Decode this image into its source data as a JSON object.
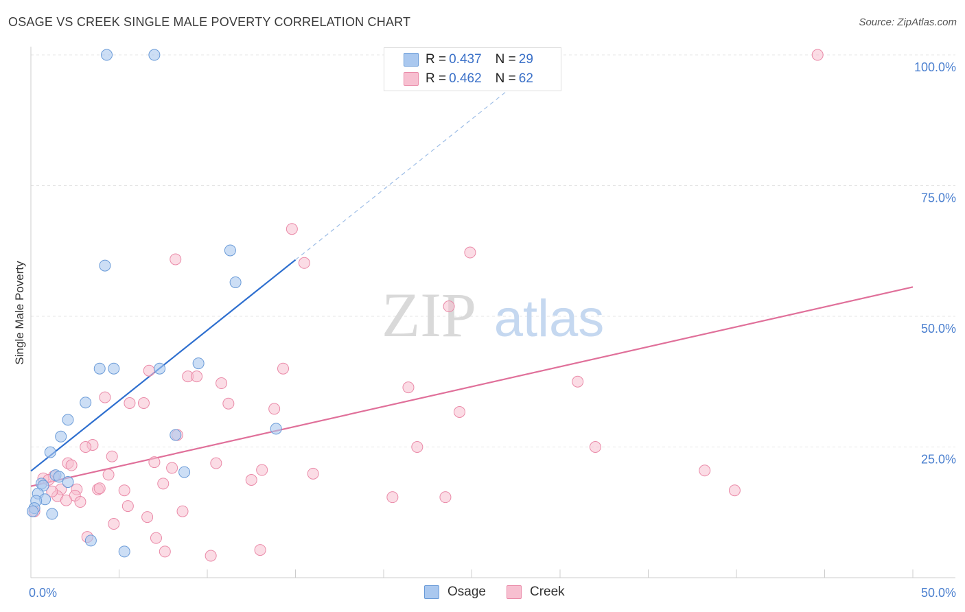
{
  "title": "OSAGE VS CREEK SINGLE MALE POVERTY CORRELATION CHART",
  "source": "Source: ZipAtlas.com",
  "watermark": {
    "zip": "ZIP",
    "atlas": "atlas"
  },
  "legend": {
    "rows": [
      {
        "r_label": "R = ",
        "r_value": "0.437",
        "n_label": "N = ",
        "n_value": "29"
      },
      {
        "r_label": "R = ",
        "r_value": "0.462",
        "n_label": "N = ",
        "n_value": "62"
      }
    ]
  },
  "bottom_legend": [
    "Osage",
    "Creek"
  ],
  "colors": {
    "osage_fill": "#aac8ef",
    "osage_stroke": "#6a9bd8",
    "osage_line": "#2e6fcf",
    "creek_fill": "#f7bfd0",
    "creek_stroke": "#ea8aa8",
    "creek_line": "#e0709a",
    "tick_text": "#4a7fcf",
    "grid": "#e4e4e4"
  },
  "chart_data": {
    "type": "scatter",
    "title": "OSAGE VS CREEK SINGLE MALE POVERTY CORRELATION CHART",
    "xlabel": "",
    "ylabel": "Single Male Poverty",
    "xlim": [
      0,
      50
    ],
    "ylim": [
      0,
      100
    ],
    "x_tick_labels": [
      "0.0%",
      "50.0%"
    ],
    "y_tick_labels": [
      "25.0%",
      "50.0%",
      "75.0%",
      "100.0%"
    ],
    "y_ticks": [
      25,
      50,
      75,
      100
    ],
    "series": [
      {
        "name": "Osage",
        "R": 0.437,
        "N": 29,
        "trend": {
          "x0": 0,
          "y0": 20.4,
          "x1": 15,
          "y1": 60.8,
          "dash_to_x": 27.5
        },
        "points": [
          [
            4.3,
            100
          ],
          [
            7.0,
            100
          ],
          [
            4.2,
            59.7
          ],
          [
            11.3,
            62.6
          ],
          [
            11.6,
            56.5
          ],
          [
            3.9,
            40.0
          ],
          [
            4.7,
            40.0
          ],
          [
            7.3,
            40.0
          ],
          [
            9.5,
            41.0
          ],
          [
            3.1,
            33.5
          ],
          [
            2.1,
            30.2
          ],
          [
            1.7,
            27.0
          ],
          [
            8.2,
            27.3
          ],
          [
            13.9,
            28.5
          ],
          [
            1.1,
            24.0
          ],
          [
            1.4,
            19.6
          ],
          [
            1.6,
            19.3
          ],
          [
            2.1,
            18.3
          ],
          [
            8.7,
            20.2
          ],
          [
            0.6,
            18.0
          ],
          [
            0.7,
            17.6
          ],
          [
            0.4,
            16.1
          ],
          [
            0.8,
            15.0
          ],
          [
            0.3,
            14.7
          ],
          [
            0.2,
            13.3
          ],
          [
            0.1,
            12.7
          ],
          [
            1.2,
            12.2
          ],
          [
            3.4,
            7.1
          ],
          [
            5.3,
            5.0
          ]
        ]
      },
      {
        "name": "Creek",
        "R": 0.462,
        "N": 62,
        "trend": {
          "x0": 0,
          "y0": 17.5,
          "x1": 50,
          "y1": 55.6
        },
        "points": [
          [
            44.6,
            100
          ],
          [
            14.8,
            66.7
          ],
          [
            15.5,
            60.2
          ],
          [
            8.2,
            60.9
          ],
          [
            24.9,
            62.2
          ],
          [
            23.7,
            51.9
          ],
          [
            14.3,
            40.0
          ],
          [
            6.7,
            39.6
          ],
          [
            8.9,
            38.5
          ],
          [
            9.4,
            38.5
          ],
          [
            10.8,
            37.2
          ],
          [
            31.0,
            37.5
          ],
          [
            21.4,
            36.4
          ],
          [
            4.2,
            34.5
          ],
          [
            5.6,
            33.4
          ],
          [
            6.4,
            33.4
          ],
          [
            11.2,
            33.3
          ],
          [
            13.8,
            32.3
          ],
          [
            24.3,
            31.7
          ],
          [
            8.3,
            27.3
          ],
          [
            3.5,
            25.4
          ],
          [
            3.1,
            25.0
          ],
          [
            21.9,
            25.0
          ],
          [
            32.0,
            25.0
          ],
          [
            4.6,
            23.2
          ],
          [
            7.0,
            22.1
          ],
          [
            2.1,
            21.9
          ],
          [
            2.3,
            21.5
          ],
          [
            10.5,
            21.9
          ],
          [
            8.0,
            21.0
          ],
          [
            13.1,
            20.6
          ],
          [
            38.2,
            20.5
          ],
          [
            4.4,
            19.7
          ],
          [
            16.0,
            19.9
          ],
          [
            0.7,
            19.0
          ],
          [
            1.3,
            19.4
          ],
          [
            1.0,
            18.7
          ],
          [
            7.5,
            18.0
          ],
          [
            12.5,
            18.7
          ],
          [
            1.7,
            16.9
          ],
          [
            2.6,
            16.9
          ],
          [
            3.8,
            16.9
          ],
          [
            3.9,
            17.1
          ],
          [
            5.3,
            16.7
          ],
          [
            39.9,
            16.7
          ],
          [
            2.5,
            15.7
          ],
          [
            20.5,
            15.4
          ],
          [
            23.5,
            15.4
          ],
          [
            1.5,
            15.6
          ],
          [
            2.0,
            14.8
          ],
          [
            2.8,
            14.5
          ],
          [
            5.5,
            13.7
          ],
          [
            8.6,
            12.7
          ],
          [
            6.6,
            11.6
          ],
          [
            4.7,
            10.3
          ],
          [
            3.2,
            7.8
          ],
          [
            7.1,
            7.6
          ],
          [
            7.6,
            5.0
          ],
          [
            13.0,
            5.3
          ],
          [
            10.2,
            4.2
          ],
          [
            0.2,
            12.7
          ],
          [
            1.2,
            16.5
          ]
        ]
      }
    ]
  }
}
